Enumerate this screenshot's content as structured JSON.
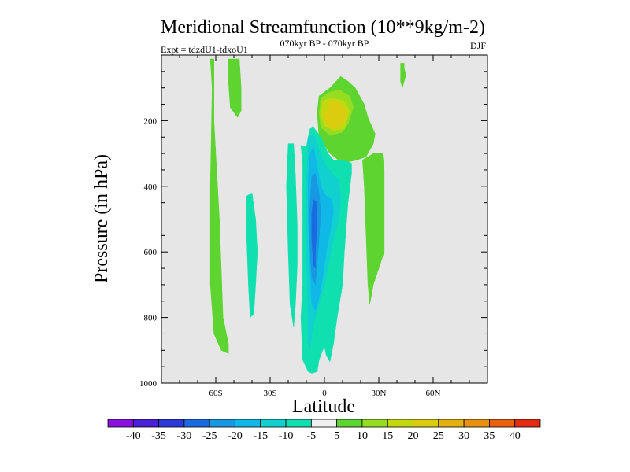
{
  "chart_data": {
    "type": "contour",
    "title": "Meridional Streamfunction (10**9kg/m-2)",
    "subtitle_left": "Expt = tdzdU1-tdxoU1",
    "subtitle_center": "070kyr BP - 070kyr BP",
    "subtitle_right": "DJF",
    "xlabel": "Latitude",
    "ylabel": "Pressure (in hPa)",
    "xlim": [
      -90,
      90
    ],
    "ylim": [
      1000,
      0
    ],
    "x_ticks": [
      {
        "value": -60,
        "label": "60S"
      },
      {
        "value": -30,
        "label": "30S"
      },
      {
        "value": 0,
        "label": "0"
      },
      {
        "value": 30,
        "label": "30N"
      },
      {
        "value": 60,
        "label": "60N"
      }
    ],
    "y_ticks": [
      {
        "value": 200,
        "label": "200"
      },
      {
        "value": 400,
        "label": "400"
      },
      {
        "value": 600,
        "label": "600"
      },
      {
        "value": 800,
        "label": "800"
      },
      {
        "value": 1000,
        "label": "1000"
      }
    ],
    "colorbar": {
      "labels": [
        "-40",
        "-35",
        "-30",
        "-25",
        "-20",
        "-15",
        "-10",
        "-5",
        "5",
        "10",
        "15",
        "20",
        "25",
        "30",
        "35",
        "40"
      ],
      "colors": [
        "#8a10e0",
        "#4a20d8",
        "#2a3ad8",
        "#1a6ae0",
        "#1898e0",
        "#10b8e8",
        "#10d0d0",
        "#10e0b0",
        "#f0f0f0",
        "#5ed430",
        "#96dc20",
        "#c4d810",
        "#dccc10",
        "#e4b010",
        "#e89010",
        "#e86010",
        "#e42a10"
      ]
    },
    "regions": [
      {
        "level": 5,
        "color": "#5ed430",
        "points": [
          [
            -63,
            12
          ],
          [
            -61,
            12
          ],
          [
            -61,
            200
          ],
          [
            -58,
            500
          ],
          [
            -56,
            800
          ],
          [
            -53,
            880
          ],
          [
            -53,
            910
          ],
          [
            -57,
            900
          ],
          [
            -61,
            850
          ],
          [
            -63,
            700
          ],
          [
            -63,
            400
          ],
          [
            -62,
            100
          ]
        ]
      },
      {
        "level": 5,
        "color": "#5ed430",
        "points": [
          [
            -53,
            12
          ],
          [
            -47,
            12
          ],
          [
            -46,
            100
          ],
          [
            -46,
            170
          ],
          [
            -48,
            190
          ],
          [
            -52,
            160
          ],
          [
            -53,
            80
          ]
        ]
      },
      {
        "level": 5,
        "color": "#5ed430",
        "points": [
          [
            -4,
            175
          ],
          [
            -3,
            125
          ],
          [
            3,
            100
          ],
          [
            9,
            65
          ],
          [
            13,
            80
          ],
          [
            17,
            100
          ],
          [
            22,
            150
          ],
          [
            24,
            190
          ],
          [
            28,
            240
          ],
          [
            27,
            270
          ],
          [
            23,
            310
          ],
          [
            18,
            320
          ],
          [
            10,
            330
          ],
          [
            3,
            300
          ],
          [
            -3,
            250
          ]
        ]
      },
      {
        "level": 5,
        "color": "#5ed430",
        "points": [
          [
            21,
            320
          ],
          [
            27,
            300
          ],
          [
            32,
            300
          ],
          [
            33,
            350
          ],
          [
            33,
            600
          ],
          [
            30,
            650
          ],
          [
            27,
            700
          ],
          [
            25,
            760
          ],
          [
            24,
            700
          ],
          [
            23,
            550
          ],
          [
            22,
            400
          ]
        ]
      },
      {
        "level": 5,
        "color": "#5ed430",
        "points": [
          [
            42,
            25
          ],
          [
            44,
            25
          ],
          [
            44,
            40
          ],
          [
            45,
            60
          ],
          [
            44,
            80
          ],
          [
            43,
            100
          ],
          [
            42,
            80
          ]
        ]
      },
      {
        "level": 10,
        "color": "#96dc20",
        "points": [
          [
            -3,
            175
          ],
          [
            -2,
            130
          ],
          [
            2,
            115
          ],
          [
            8,
            105
          ],
          [
            14,
            125
          ],
          [
            16,
            160
          ],
          [
            13,
            210
          ],
          [
            10,
            235
          ],
          [
            3,
            245
          ],
          [
            -2,
            220
          ]
        ]
      },
      {
        "level": 15,
        "color": "#c4d810",
        "points": [
          [
            -2,
            185
          ],
          [
            -1,
            140
          ],
          [
            4,
            130
          ],
          [
            11,
            140
          ],
          [
            14,
            170
          ],
          [
            11,
            225
          ],
          [
            5,
            230
          ],
          [
            0,
            215
          ]
        ]
      },
      {
        "level": 20,
        "color": "#dccc10",
        "points": [
          [
            0,
            190
          ],
          [
            2,
            150
          ],
          [
            6,
            140
          ],
          [
            11,
            160
          ],
          [
            12,
            190
          ],
          [
            9,
            215
          ],
          [
            4,
            225
          ],
          [
            1,
            210
          ]
        ]
      },
      {
        "level": -5,
        "color": "#10e0b0",
        "points": [
          [
            -43,
            430
          ],
          [
            -40,
            420
          ],
          [
            -38,
            500
          ],
          [
            -37,
            600
          ],
          [
            -38,
            700
          ],
          [
            -39,
            790
          ],
          [
            -41,
            800
          ],
          [
            -42,
            700
          ],
          [
            -43,
            550
          ]
        ]
      },
      {
        "level": -5,
        "color": "#10e0b0",
        "points": [
          [
            -13,
            275
          ],
          [
            -12,
            330
          ],
          [
            -12,
            450
          ],
          [
            -12,
            700
          ],
          [
            -13,
            800
          ],
          [
            -12,
            930
          ],
          [
            -9,
            965
          ],
          [
            -7,
            970
          ],
          [
            -4,
            965
          ],
          [
            -3,
            930
          ],
          [
            -1,
            900
          ],
          [
            0,
            890
          ],
          [
            1,
            915
          ],
          [
            3,
            935
          ],
          [
            5,
            880
          ],
          [
            7,
            800
          ],
          [
            10,
            700
          ],
          [
            11,
            600
          ],
          [
            13,
            450
          ],
          [
            15,
            360
          ],
          [
            15,
            330
          ],
          [
            10,
            320
          ],
          [
            5,
            320
          ],
          [
            2,
            300
          ],
          [
            -2,
            250
          ],
          [
            -6,
            220
          ],
          [
            -8,
            225
          ],
          [
            -9,
            250
          ],
          [
            -10,
            280
          ]
        ]
      },
      {
        "level": -5,
        "color": "#10e0b0",
        "points": [
          [
            -20,
            270
          ],
          [
            -17,
            270
          ],
          [
            -16,
            370
          ],
          [
            -15,
            520
          ],
          [
            -15,
            640
          ],
          [
            -16,
            760
          ],
          [
            -17,
            830
          ],
          [
            -19,
            760
          ],
          [
            -20,
            600
          ],
          [
            -21,
            400
          ]
        ]
      },
      {
        "level": -10,
        "color": "#10d0d0",
        "points": [
          [
            -9,
            250
          ],
          [
            -6,
            240
          ],
          [
            -3,
            290
          ],
          [
            0,
            330
          ],
          [
            4,
            360
          ],
          [
            8,
            380
          ],
          [
            9,
            440
          ],
          [
            8,
            500
          ],
          [
            5,
            560
          ],
          [
            3,
            620
          ],
          [
            0,
            700
          ],
          [
            -3,
            760
          ],
          [
            -5,
            800
          ],
          [
            -7,
            850
          ],
          [
            -8,
            900
          ],
          [
            -9,
            880
          ],
          [
            -9,
            800
          ],
          [
            -10,
            600
          ],
          [
            -10,
            400
          ]
        ]
      },
      {
        "level": -15,
        "color": "#10b8e8",
        "points": [
          [
            -8,
            300
          ],
          [
            -6,
            280
          ],
          [
            -4,
            340
          ],
          [
            -2,
            400
          ],
          [
            1,
            430
          ],
          [
            4,
            440
          ],
          [
            5,
            480
          ],
          [
            3,
            540
          ],
          [
            1,
            600
          ],
          [
            -1,
            680
          ],
          [
            -3,
            740
          ],
          [
            -5,
            780
          ],
          [
            -7,
            760
          ],
          [
            -8,
            650
          ],
          [
            -9,
            500
          ],
          [
            -9,
            380
          ]
        ]
      },
      {
        "level": -20,
        "color": "#1898e0",
        "points": [
          [
            -7,
            370
          ],
          [
            -5,
            360
          ],
          [
            -3,
            420
          ],
          [
            -2,
            480
          ],
          [
            -3,
            560
          ],
          [
            -4,
            640
          ],
          [
            -5,
            700
          ],
          [
            -7,
            680
          ],
          [
            -8,
            580
          ],
          [
            -8,
            460
          ]
        ]
      },
      {
        "level": -25,
        "color": "#1a6ae0",
        "points": [
          [
            -6,
            440
          ],
          [
            -4,
            450
          ],
          [
            -4,
            520
          ],
          [
            -5,
            600
          ],
          [
            -5,
            650
          ],
          [
            -6,
            640
          ],
          [
            -7,
            560
          ],
          [
            -7,
            480
          ]
        ]
      }
    ]
  }
}
